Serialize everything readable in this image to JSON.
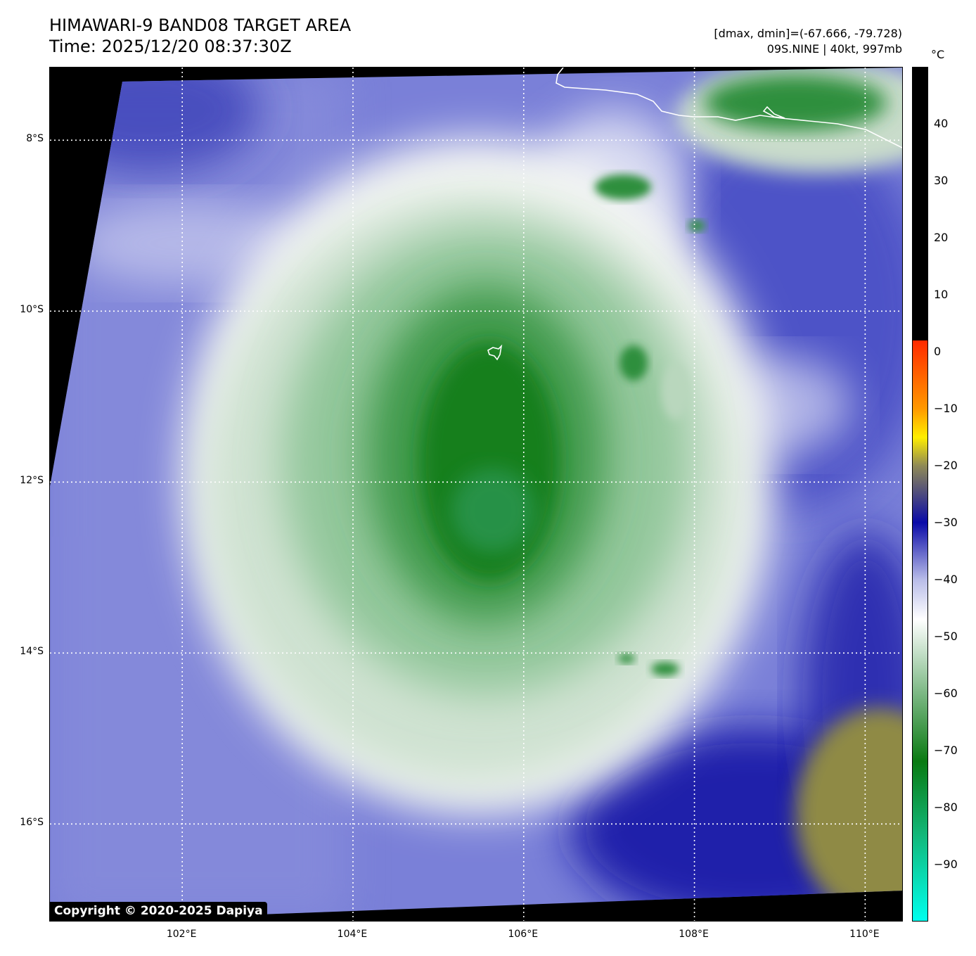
{
  "title": {
    "line1": "HIMAWARI-9 BAND08 TARGET AREA",
    "line2": "Time: 2025/12/20 08:37:30Z"
  },
  "info": {
    "range": "[dmax, dmin]=(-67.666, -79.728)",
    "storm": "09S.NINE | 40kt, 997mb"
  },
  "map": {
    "extent": {
      "lon_min": 100.45,
      "lon_max": 110.45,
      "lat_max": -7.15,
      "lat_min": -17.15
    },
    "gridlines": "dotted white",
    "lat_ticks": [
      {
        "value": -8,
        "label": "8°S"
      },
      {
        "value": -10,
        "label": "10°S"
      },
      {
        "value": -12,
        "label": "12°S"
      },
      {
        "value": -14,
        "label": "14°S"
      },
      {
        "value": -16,
        "label": "16°S"
      }
    ],
    "lon_ticks": [
      {
        "value": 102,
        "label": "102°E"
      },
      {
        "value": 104,
        "label": "104°E"
      },
      {
        "value": 106,
        "label": "106°E"
      },
      {
        "value": 108,
        "label": "108°E"
      },
      {
        "value": 110,
        "label": "110°E"
      }
    ],
    "copyright": "Copyright © 2020-2025 Dapiya",
    "colors": {
      "no_data": "#000000",
      "clear_sky": "#7a80d8",
      "cold_cloud": "#2a8a36",
      "cloud_edge": "#f2f6f2",
      "coastline": "#ffffff"
    }
  },
  "colorbar": {
    "unit": "°C",
    "min": -100,
    "max": 50,
    "tick_labels": [
      "40",
      "30",
      "20",
      "10",
      "0",
      "−10",
      "−20",
      "−30",
      "−40",
      "−50",
      "−60",
      "−70",
      "−80",
      "−90"
    ],
    "tick_values": [
      40,
      30,
      20,
      10,
      0,
      -10,
      -20,
      -30,
      -40,
      -50,
      -60,
      -70,
      -80,
      -90
    ],
    "stops": [
      {
        "value": 50,
        "color": "#000000"
      },
      {
        "value": 2,
        "color": "#000000"
      },
      {
        "value": 2,
        "color": "#ff2a00"
      },
      {
        "value": -10,
        "color": "#ff9900"
      },
      {
        "value": -15,
        "color": "#ffee00"
      },
      {
        "value": -20,
        "color": "#8f8a55"
      },
      {
        "value": -30,
        "color": "#0a0aa8"
      },
      {
        "value": -40,
        "color": "#b8bce8"
      },
      {
        "value": -47,
        "color": "#ffffff"
      },
      {
        "value": -60,
        "color": "#7cb884"
      },
      {
        "value": -72,
        "color": "#0a7a12"
      },
      {
        "value": -85,
        "color": "#12b87a"
      },
      {
        "value": -100,
        "color": "#00ffee"
      }
    ]
  }
}
